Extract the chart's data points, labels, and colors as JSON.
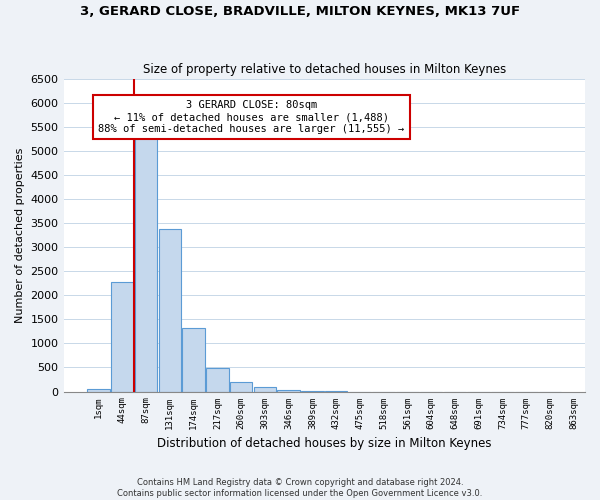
{
  "title": "3, GERARD CLOSE, BRADVILLE, MILTON KEYNES, MK13 7UF",
  "subtitle": "Size of property relative to detached houses in Milton Keynes",
  "xlabel": "Distribution of detached houses by size in Milton Keynes",
  "ylabel": "Number of detached properties",
  "footer_line1": "Contains HM Land Registry data © Crown copyright and database right 2024.",
  "footer_line2": "Contains public sector information licensed under the Open Government Licence v3.0.",
  "bin_labels": [
    "1sqm",
    "44sqm",
    "87sqm",
    "131sqm",
    "174sqm",
    "217sqm",
    "260sqm",
    "303sqm",
    "346sqm",
    "389sqm",
    "432sqm",
    "475sqm",
    "518sqm",
    "561sqm",
    "604sqm",
    "648sqm",
    "691sqm",
    "734sqm",
    "777sqm",
    "820sqm",
    "863sqm"
  ],
  "bar_values": [
    60,
    2280,
    5450,
    3380,
    1320,
    480,
    190,
    100,
    30,
    20,
    10,
    0,
    0,
    0,
    0,
    0,
    0,
    0,
    0,
    0
  ],
  "bar_color": "#c5d8ed",
  "bar_edgecolor": "#5b9bd5",
  "ylim": [
    0,
    6500
  ],
  "yticks": [
    0,
    500,
    1000,
    1500,
    2000,
    2500,
    3000,
    3500,
    4000,
    4500,
    5000,
    5500,
    6000,
    6500
  ],
  "property_line_index": 2,
  "property_line_color": "#cc0000",
  "annotation_title": "3 GERARD CLOSE: 80sqm",
  "annotation_line1": "← 11% of detached houses are smaller (1,488)",
  "annotation_line2": "88% of semi-detached houses are larger (11,555) →",
  "annotation_box_color": "#cc0000",
  "background_color": "#eef2f7",
  "plot_background": "#ffffff"
}
